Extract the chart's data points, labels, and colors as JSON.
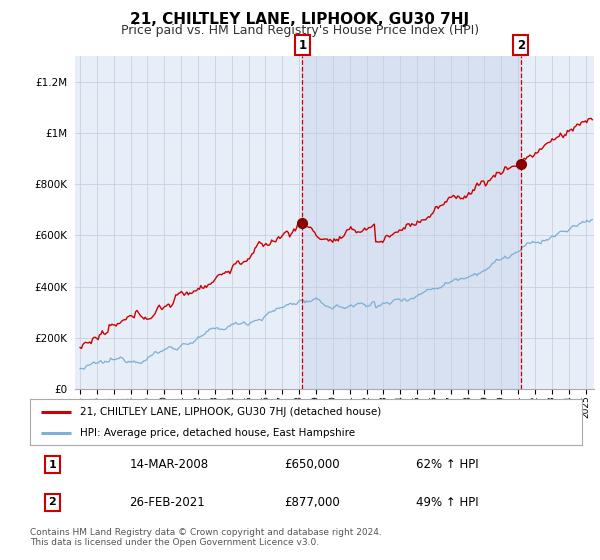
{
  "title": "21, CHILTLEY LANE, LIPHOOK, GU30 7HJ",
  "subtitle": "Price paid vs. HM Land Registry's House Price Index (HPI)",
  "ylabel_ticks": [
    "£0",
    "£200K",
    "£400K",
    "£600K",
    "£800K",
    "£1M",
    "£1.2M"
  ],
  "ytick_values": [
    0,
    200000,
    400000,
    600000,
    800000,
    1000000,
    1200000
  ],
  "ylim": [
    0,
    1300000
  ],
  "xlim_start": 1994.7,
  "xlim_end": 2025.5,
  "red_line_color": "#cc0000",
  "blue_line_color": "#7bafd4",
  "transaction1_x": 2008.2,
  "transaction1_y": 650000,
  "transaction2_x": 2021.15,
  "transaction2_y": 877000,
  "vline1_x": 2008.2,
  "vline2_x": 2021.15,
  "legend_label_red": "21, CHILTLEY LANE, LIPHOOK, GU30 7HJ (detached house)",
  "legend_label_blue": "HPI: Average price, detached house, East Hampshire",
  "table_row1": [
    "1",
    "14-MAR-2008",
    "£650,000",
    "62% ↑ HPI"
  ],
  "table_row2": [
    "2",
    "26-FEB-2021",
    "£877,000",
    "49% ↑ HPI"
  ],
  "footer": "Contains HM Land Registry data © Crown copyright and database right 2024.\nThis data is licensed under the Open Government Licence v3.0.",
  "background_color": "#e8eef8",
  "grid_color": "#c8d0e0",
  "shade_color": "#d0dcf0",
  "title_fontsize": 11,
  "subtitle_fontsize": 9
}
